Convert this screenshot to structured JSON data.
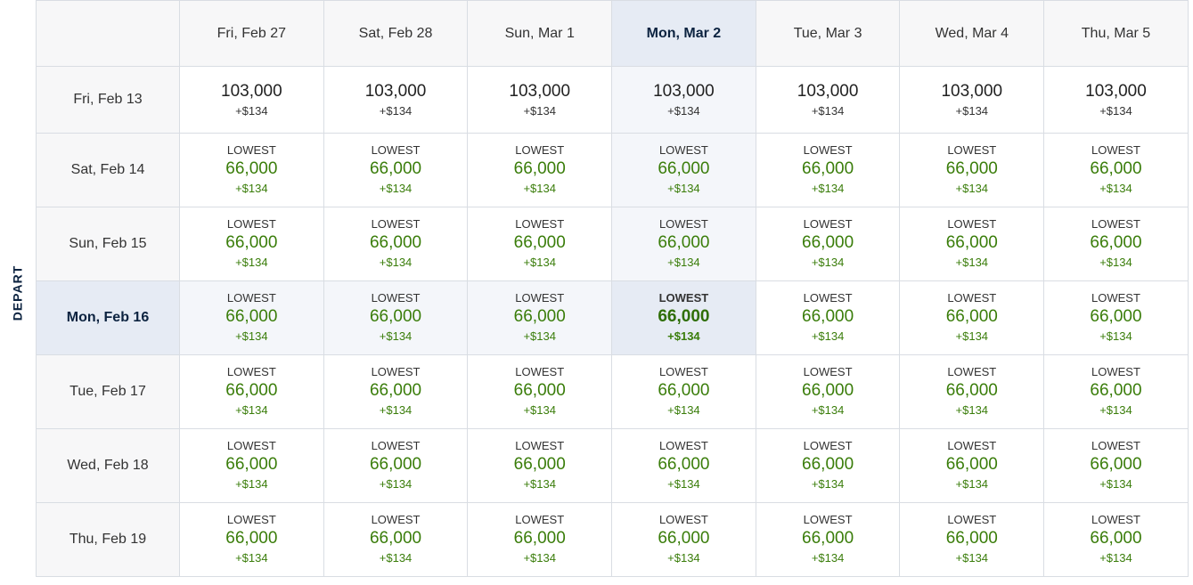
{
  "axis_label": "DEPART",
  "return_dates": [
    "Fri, Feb 27",
    "Sat, Feb 28",
    "Sun, Mar 1",
    "Mon, Mar 2",
    "Tue, Mar 3",
    "Wed, Mar 4",
    "Thu, Mar 5"
  ],
  "selected_return_index": 3,
  "selected_depart_index": 3,
  "colors": {
    "lowest_green": "#3a7d0a",
    "highlight": "#e6ebf4",
    "tint": "#f4f6fa",
    "header_bg": "#f7f7f8",
    "navy": "#0c2340"
  },
  "rows": [
    {
      "depart": "Fri, Feb 13",
      "cells": [
        {
          "tag": "",
          "points": "103,000",
          "tax": "+$134"
        },
        {
          "tag": "",
          "points": "103,000",
          "tax": "+$134"
        },
        {
          "tag": "",
          "points": "103,000",
          "tax": "+$134"
        },
        {
          "tag": "",
          "points": "103,000",
          "tax": "+$134"
        },
        {
          "tag": "",
          "points": "103,000",
          "tax": "+$134"
        },
        {
          "tag": "",
          "points": "103,000",
          "tax": "+$134"
        },
        {
          "tag": "",
          "points": "103,000",
          "tax": "+$134"
        }
      ]
    },
    {
      "depart": "Sat, Feb 14",
      "cells": [
        {
          "tag": "LOWEST",
          "points": "66,000",
          "tax": "+$134"
        },
        {
          "tag": "LOWEST",
          "points": "66,000",
          "tax": "+$134"
        },
        {
          "tag": "LOWEST",
          "points": "66,000",
          "tax": "+$134"
        },
        {
          "tag": "LOWEST",
          "points": "66,000",
          "tax": "+$134"
        },
        {
          "tag": "LOWEST",
          "points": "66,000",
          "tax": "+$134"
        },
        {
          "tag": "LOWEST",
          "points": "66,000",
          "tax": "+$134"
        },
        {
          "tag": "LOWEST",
          "points": "66,000",
          "tax": "+$134"
        }
      ]
    },
    {
      "depart": "Sun, Feb 15",
      "cells": [
        {
          "tag": "LOWEST",
          "points": "66,000",
          "tax": "+$134"
        },
        {
          "tag": "LOWEST",
          "points": "66,000",
          "tax": "+$134"
        },
        {
          "tag": "LOWEST",
          "points": "66,000",
          "tax": "+$134"
        },
        {
          "tag": "LOWEST",
          "points": "66,000",
          "tax": "+$134"
        },
        {
          "tag": "LOWEST",
          "points": "66,000",
          "tax": "+$134"
        },
        {
          "tag": "LOWEST",
          "points": "66,000",
          "tax": "+$134"
        },
        {
          "tag": "LOWEST",
          "points": "66,000",
          "tax": "+$134"
        }
      ]
    },
    {
      "depart": "Mon, Feb 16",
      "cells": [
        {
          "tag": "LOWEST",
          "points": "66,000",
          "tax": "+$134"
        },
        {
          "tag": "LOWEST",
          "points": "66,000",
          "tax": "+$134"
        },
        {
          "tag": "LOWEST",
          "points": "66,000",
          "tax": "+$134"
        },
        {
          "tag": "LOWEST",
          "points": "66,000",
          "tax": "+$134"
        },
        {
          "tag": "LOWEST",
          "points": "66,000",
          "tax": "+$134"
        },
        {
          "tag": "LOWEST",
          "points": "66,000",
          "tax": "+$134"
        },
        {
          "tag": "LOWEST",
          "points": "66,000",
          "tax": "+$134"
        }
      ]
    },
    {
      "depart": "Tue, Feb 17",
      "cells": [
        {
          "tag": "LOWEST",
          "points": "66,000",
          "tax": "+$134"
        },
        {
          "tag": "LOWEST",
          "points": "66,000",
          "tax": "+$134"
        },
        {
          "tag": "LOWEST",
          "points": "66,000",
          "tax": "+$134"
        },
        {
          "tag": "LOWEST",
          "points": "66,000",
          "tax": "+$134"
        },
        {
          "tag": "LOWEST",
          "points": "66,000",
          "tax": "+$134"
        },
        {
          "tag": "LOWEST",
          "points": "66,000",
          "tax": "+$134"
        },
        {
          "tag": "LOWEST",
          "points": "66,000",
          "tax": "+$134"
        }
      ]
    },
    {
      "depart": "Wed, Feb 18",
      "cells": [
        {
          "tag": "LOWEST",
          "points": "66,000",
          "tax": "+$134"
        },
        {
          "tag": "LOWEST",
          "points": "66,000",
          "tax": "+$134"
        },
        {
          "tag": "LOWEST",
          "points": "66,000",
          "tax": "+$134"
        },
        {
          "tag": "LOWEST",
          "points": "66,000",
          "tax": "+$134"
        },
        {
          "tag": "LOWEST",
          "points": "66,000",
          "tax": "+$134"
        },
        {
          "tag": "LOWEST",
          "points": "66,000",
          "tax": "+$134"
        },
        {
          "tag": "LOWEST",
          "points": "66,000",
          "tax": "+$134"
        }
      ]
    },
    {
      "depart": "Thu, Feb 19",
      "cells": [
        {
          "tag": "LOWEST",
          "points": "66,000",
          "tax": "+$134"
        },
        {
          "tag": "LOWEST",
          "points": "66,000",
          "tax": "+$134"
        },
        {
          "tag": "LOWEST",
          "points": "66,000",
          "tax": "+$134"
        },
        {
          "tag": "LOWEST",
          "points": "66,000",
          "tax": "+$134"
        },
        {
          "tag": "LOWEST",
          "points": "66,000",
          "tax": "+$134"
        },
        {
          "tag": "LOWEST",
          "points": "66,000",
          "tax": "+$134"
        },
        {
          "tag": "LOWEST",
          "points": "66,000",
          "tax": "+$134"
        }
      ]
    }
  ]
}
